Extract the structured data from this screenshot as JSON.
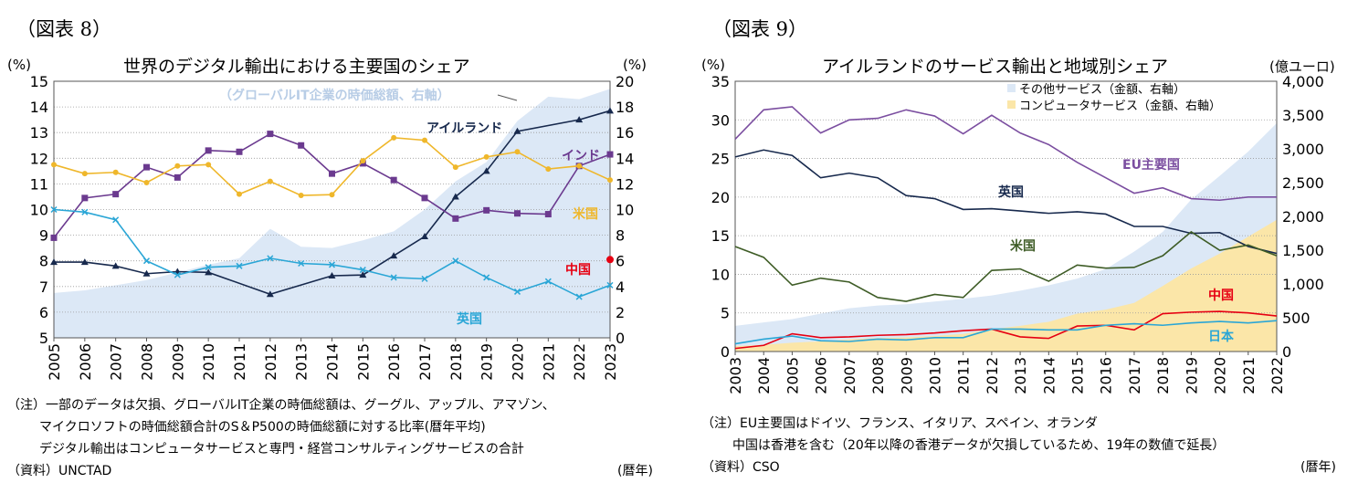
{
  "chart_data": [
    {
      "type": "line",
      "figure_label": "（図表 8）",
      "title": "世界のデジタル輸出における主要国のシェア",
      "left_unit": "(%)",
      "right_unit": "(%)",
      "xlabel": "(暦年)",
      "x": [
        2005,
        2006,
        2007,
        2008,
        2009,
        2010,
        2011,
        2012,
        2013,
        2014,
        2015,
        2016,
        2017,
        2018,
        2019,
        2020,
        2021,
        2022,
        2023
      ],
      "ylim_left": [
        5,
        15
      ],
      "ylim_right": [
        0,
        20
      ],
      "y_ticks_left": [
        "5",
        "6",
        "7",
        "8",
        "9",
        "10",
        "11",
        "12",
        "13",
        "14",
        "15"
      ],
      "y_ticks_right": [
        "0",
        "2",
        "4",
        "6",
        "8",
        "10",
        "12",
        "14",
        "16",
        "18",
        "20"
      ],
      "area": {
        "name": "（グローバルIT企業の時価総額、右軸）",
        "color": "#dce8f6",
        "values": [
          3.5,
          3.7,
          4.1,
          4.5,
          5.1,
          5.7,
          6.2,
          8.5,
          7.1,
          7.0,
          7.6,
          8.3,
          10.0,
          12.2,
          13.7,
          16.9,
          18.8,
          18.6,
          19.4
        ]
      },
      "series": [
        {
          "name": "アイルランド",
          "color": "#17294d",
          "marker": "triangle",
          "values": [
            7.95,
            7.95,
            7.8,
            7.5,
            7.58,
            7.55,
            null,
            6.7,
            null,
            7.42,
            7.45,
            8.2,
            8.95,
            10.5,
            11.5,
            13.05,
            null,
            13.5,
            13.85
          ]
        },
        {
          "name": "インド",
          "color": "#6b3a8f",
          "marker": "square",
          "values": [
            8.9,
            10.45,
            10.6,
            11.65,
            11.25,
            12.3,
            12.25,
            12.95,
            12.5,
            11.4,
            11.8,
            11.15,
            10.45,
            9.65,
            9.97,
            9.85,
            9.82,
            11.7,
            12.15
          ]
        },
        {
          "name": "米国",
          "color": "#efb72b",
          "marker": "circle",
          "values": [
            11.75,
            11.4,
            11.45,
            11.05,
            11.7,
            11.75,
            10.6,
            11.1,
            10.55,
            10.58,
            11.9,
            12.8,
            12.7,
            11.65,
            12.05,
            12.25,
            11.58,
            11.7,
            11.15
          ]
        },
        {
          "name": "中国",
          "color": "#e60012",
          "marker": "dot",
          "values": [
            null,
            null,
            null,
            null,
            null,
            null,
            null,
            null,
            null,
            null,
            null,
            null,
            null,
            null,
            null,
            null,
            null,
            null,
            8.05
          ]
        },
        {
          "name": "英国",
          "color": "#2aa6d6",
          "marker": "x",
          "values": [
            10.0,
            9.9,
            9.6,
            8.0,
            7.45,
            7.75,
            7.8,
            8.1,
            7.9,
            7.85,
            7.65,
            7.35,
            7.3,
            8.0,
            7.35,
            6.8,
            7.2,
            6.6,
            7.05
          ]
        }
      ],
      "notes": [
        "（注）一部のデータは欠損、グローバルIT企業の時価総額は、グーグル、アップル、アマゾン、",
        "マイクロソフトの時価総額合計のS＆P500の時価総額に対する比率(暦年平均)",
        "デジタル輸出はコンピュータサービスと専門・経営コンサルティングサービスの合計",
        "（資料）UNCTAD"
      ]
    },
    {
      "type": "line",
      "figure_label": "（図表 9）",
      "title": "アイルランドのサービス輸出と地域別シェア",
      "left_unit": "(%)",
      "right_unit": "(億ユーロ)",
      "xlabel": "(暦年)",
      "x": [
        2003,
        2004,
        2005,
        2006,
        2007,
        2008,
        2009,
        2010,
        2011,
        2012,
        2013,
        2014,
        2015,
        2016,
        2017,
        2018,
        2019,
        2020,
        2021,
        2022
      ],
      "ylim_left": [
        0,
        35
      ],
      "ylim_right": [
        0,
        4000
      ],
      "y_ticks_left": [
        "0",
        "5",
        "10",
        "15",
        "20",
        "25",
        "30",
        "35"
      ],
      "y_ticks_right": [
        "0",
        "500",
        "1,000",
        "1,500",
        "2,000",
        "2,500",
        "3,000",
        "3,500",
        "4,000"
      ],
      "areas": [
        {
          "name": "その他サービス（金額、右軸）",
          "color": "#dce8f6",
          "values": [
            380,
            430,
            480,
            560,
            640,
            680,
            700,
            740,
            780,
            830,
            900,
            980,
            1080,
            1220,
            1480,
            1770,
            2250,
            2600,
            2960,
            3380
          ]
        },
        {
          "name": "コンピュータサービス（金額、右軸）",
          "color": "#fbe6a8",
          "values": [
            80,
            100,
            130,
            150,
            180,
            200,
            210,
            230,
            260,
            330,
            380,
            440,
            560,
            620,
            720,
            970,
            1230,
            1450,
            1700,
            1950
          ]
        }
      ],
      "series": [
        {
          "name": "EU主要国",
          "color": "#7b4ea0",
          "values": [
            27.5,
            31.3,
            31.7,
            28.3,
            30.0,
            30.2,
            31.3,
            30.5,
            28.2,
            30.6,
            28.3,
            26.8,
            24.5,
            22.5,
            20.5,
            21.2,
            19.8,
            19.6,
            20.0,
            20.0
          ]
        },
        {
          "name": "英国",
          "color": "#17294d",
          "values": [
            25.2,
            26.1,
            25.4,
            22.5,
            23.1,
            22.5,
            20.2,
            19.8,
            18.4,
            18.5,
            18.2,
            17.9,
            18.1,
            17.8,
            16.2,
            16.2,
            15.3,
            15.4,
            13.6,
            12.7
          ]
        },
        {
          "name": "米国",
          "color": "#3e5c26",
          "values": [
            13.6,
            12.2,
            8.6,
            9.5,
            9.0,
            7.0,
            6.5,
            7.4,
            7.0,
            10.5,
            10.7,
            9.1,
            11.2,
            10.8,
            10.9,
            12.4,
            15.5,
            13.1,
            13.8,
            12.4
          ]
        },
        {
          "name": "中国",
          "color": "#e60012",
          "values": [
            0.4,
            0.8,
            2.3,
            1.8,
            1.9,
            2.1,
            2.2,
            2.4,
            2.7,
            2.9,
            1.9,
            1.7,
            3.3,
            3.4,
            2.8,
            4.9,
            5.1,
            5.2,
            5.0,
            4.6
          ]
        },
        {
          "name": "日本",
          "color": "#2aa6d6",
          "values": [
            1.0,
            1.6,
            2.0,
            1.4,
            1.3,
            1.6,
            1.5,
            1.8,
            1.8,
            2.9,
            2.9,
            2.8,
            2.8,
            3.4,
            3.6,
            3.4,
            3.7,
            3.9,
            3.7,
            4.0
          ]
        }
      ],
      "notes": [
        "（注）EU主要国はドイツ、フランス、イタリア、スペイン、オランダ",
        "中国は香港を含む（20年以降の香港データが欠損しているため、19年の数値で延長）",
        "（資料）CSO"
      ]
    }
  ]
}
